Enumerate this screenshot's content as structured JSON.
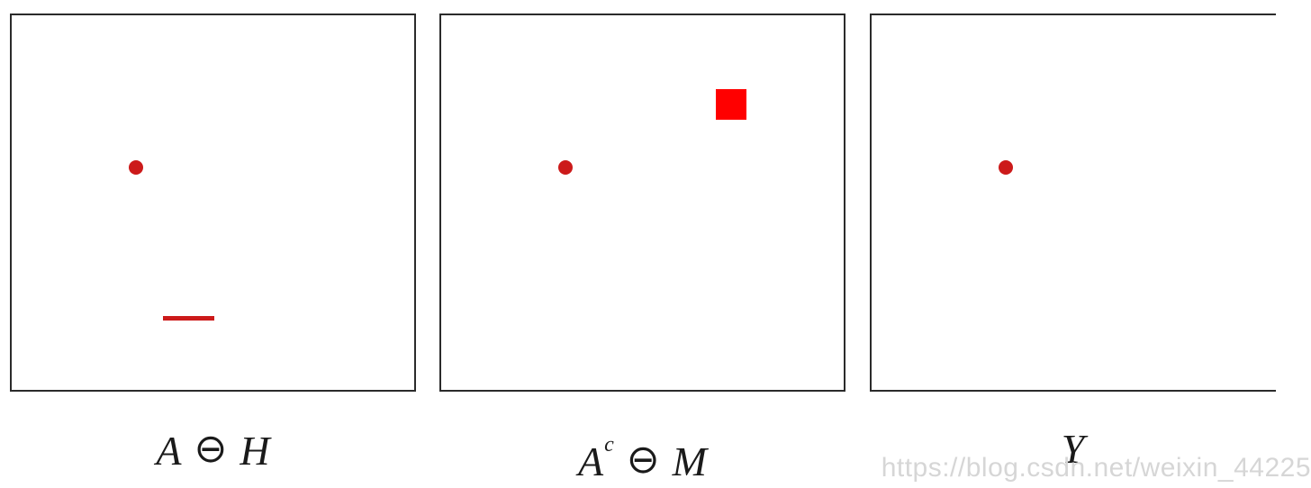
{
  "colors": {
    "mark": "#cc1a1a",
    "square": "#ff0000",
    "border": "#2b2b2b",
    "watermark": "#d6d6d6"
  },
  "panels": [
    {
      "caption": {
        "main": "A",
        "operator": "⊖",
        "second": "H",
        "superscript": ""
      },
      "shapes": [
        "dot",
        "horizontal-line"
      ]
    },
    {
      "caption": {
        "main": "A",
        "superscript": "c",
        "operator": "⊖",
        "second": "M"
      },
      "shapes": [
        "dot",
        "square"
      ]
    },
    {
      "caption": {
        "main": "Y",
        "superscript": "",
        "operator": "",
        "second": ""
      },
      "shapes": [
        "dot"
      ]
    }
  ],
  "watermark": "https://blog.csdn.net/weixin_44225"
}
